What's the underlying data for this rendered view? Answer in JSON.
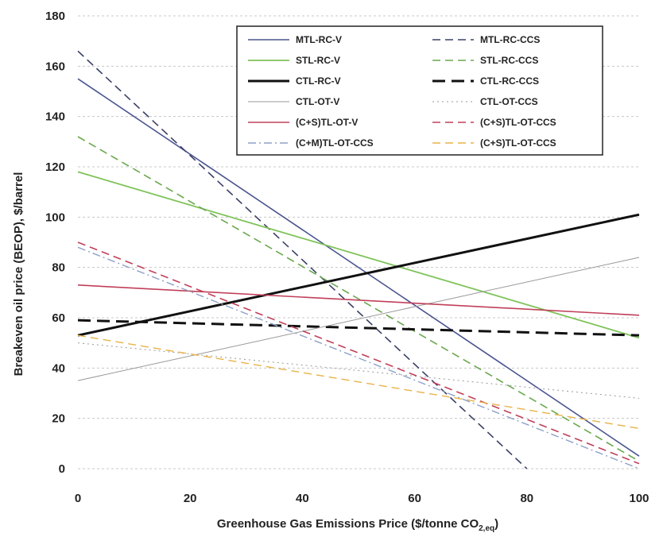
{
  "chart_data": {
    "type": "line",
    "title": "",
    "xlabel_main": "Greenhouse Gas Emissions  Price ($/tonne CO",
    "xlabel_sub": "2,eq",
    "xlabel_close": ")",
    "ylabel": "Breakeven oil price (BEOP), $/barrel",
    "xlim": [
      0,
      100
    ],
    "ylim": [
      0,
      180
    ],
    "x_ticks": [
      0,
      20,
      40,
      60,
      80,
      100
    ],
    "y_ticks": [
      0,
      20,
      40,
      60,
      80,
      100,
      120,
      140,
      160,
      180
    ],
    "grid": "horizontal-dashed",
    "legend_position": "top-right",
    "series": [
      {
        "name": "MTL-RC-V",
        "color": "#4a5590",
        "dash": "solid",
        "width": 1.6,
        "x": [
          0,
          100
        ],
        "y": [
          155,
          5
        ]
      },
      {
        "name": "MTL-RC-CCS",
        "color": "#3a4066",
        "dash": "dashed",
        "width": 1.6,
        "x": [
          0,
          80
        ],
        "y": [
          166,
          0
        ]
      },
      {
        "name": "STL-RC-V",
        "color": "#7fc35a",
        "dash": "solid",
        "width": 1.8,
        "x": [
          0,
          100
        ],
        "y": [
          118,
          52
        ]
      },
      {
        "name": "STL-RC-CCS",
        "color": "#6aa84f",
        "dash": "dashed",
        "width": 1.6,
        "x": [
          0,
          100
        ],
        "y": [
          132,
          3
        ]
      },
      {
        "name": "CTL-RC-V",
        "color": "#111111",
        "dash": "solid",
        "width": 3,
        "x": [
          0,
          100
        ],
        "y": [
          53,
          101
        ]
      },
      {
        "name": "CTL-RC-CCS",
        "color": "#111111",
        "dash": "longdash",
        "width": 3,
        "x": [
          0,
          100
        ],
        "y": [
          59,
          53
        ]
      },
      {
        "name": "CTL-OT-V",
        "color": "#999999",
        "dash": "solid",
        "width": 1,
        "x": [
          0,
          100
        ],
        "y": [
          35,
          84
        ]
      },
      {
        "name": "CTL-OT-CCS",
        "color": "#999999",
        "dash": "dotted",
        "width": 1,
        "x": [
          0,
          100
        ],
        "y": [
          50,
          28
        ]
      },
      {
        "name": "(C+S)TL-OT-V",
        "color": "#c0405a",
        "dash": "solid",
        "width": 1.6,
        "x": [
          0,
          100
        ],
        "y": [
          73,
          61
        ]
      },
      {
        "name": "(C+S)TL-OT-CCS",
        "color": "#c0405a",
        "dash": "dashed",
        "width": 1.6,
        "x": [
          0,
          100
        ],
        "y": [
          90,
          2
        ]
      },
      {
        "name": "(C+M)TL-OT-CCS",
        "color": "#8da0c8",
        "dash": "dashdot",
        "width": 1.4,
        "x": [
          0,
          100
        ],
        "y": [
          88,
          0
        ]
      },
      {
        "name": "(C+S)TL-OT-CCS",
        "color": "#e8b34a",
        "dash": "dashed",
        "width": 1.4,
        "x": [
          0,
          100
        ],
        "y": [
          53,
          16
        ]
      }
    ]
  }
}
